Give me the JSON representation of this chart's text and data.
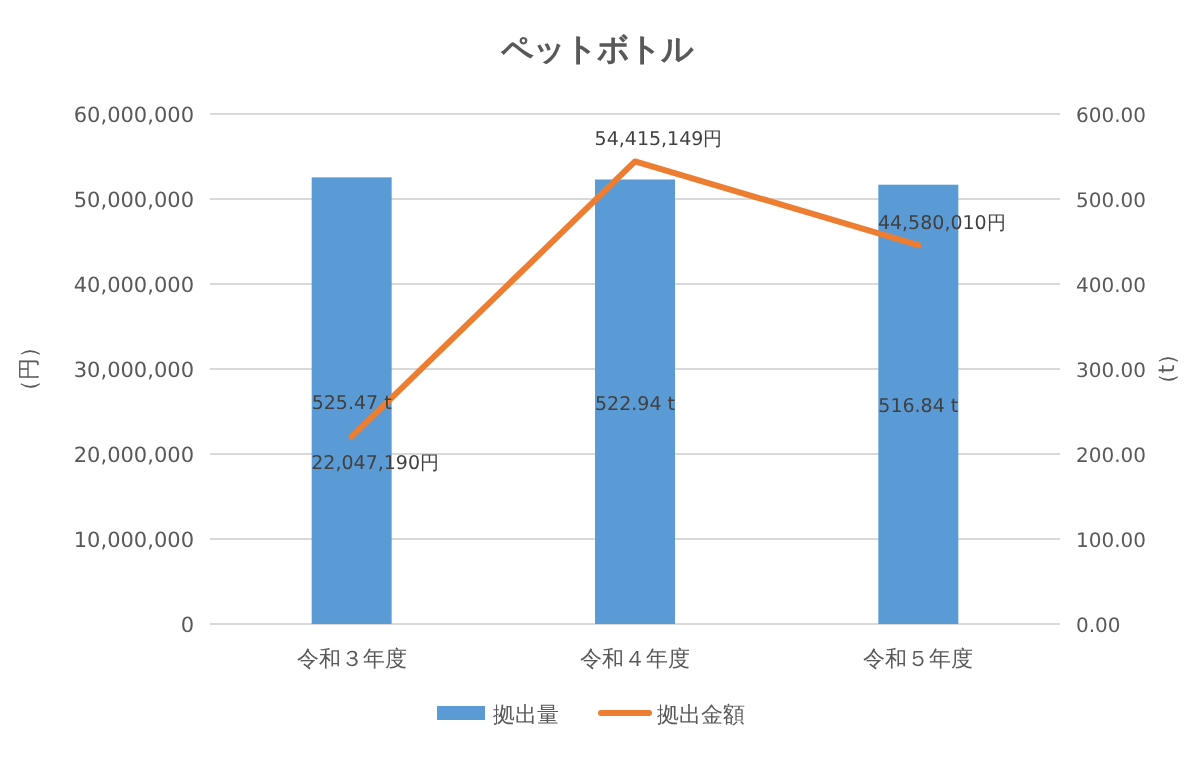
{
  "chart_data": {
    "type": "bar",
    "title": "ペットボトル",
    "ylabel": "（円）",
    "y2label": "（t）",
    "categories": [
      "令和３年度",
      "令和４年度",
      "令和５年度"
    ],
    "series": [
      {
        "name": "拠出量",
        "axis": "y2",
        "color": "#5b9bd5",
        "values": [
          525.47,
          522.94,
          516.84
        ],
        "value_labels": [
          "525.47 t",
          "522.94 t",
          "516.84 t"
        ]
      },
      {
        "name": "拠出金額",
        "type": "line",
        "color": "#ed7d31",
        "values": [
          22047190,
          54415149,
          44580010
        ],
        "value_labels": [
          "22,047,190円",
          "54,415,149円",
          "44,580,010円"
        ]
      }
    ],
    "ylim": [
      0,
      60000000
    ],
    "yticks": [
      {
        "value": 0,
        "label": "0"
      },
      {
        "value": 10000000,
        "label": "10,000,000"
      },
      {
        "value": 20000000,
        "label": "20,000,000"
      },
      {
        "value": 30000000,
        "label": "30,000,000"
      },
      {
        "value": 40000000,
        "label": "40,000,000"
      },
      {
        "value": 50000000,
        "label": "50,000,000"
      },
      {
        "value": 60000000,
        "label": "60,000,000"
      }
    ],
    "y2lim": [
      0,
      600
    ],
    "y2ticks": [
      {
        "value": 0,
        "label": "0.00"
      },
      {
        "value": 100,
        "label": "100.00"
      },
      {
        "value": 200,
        "label": "200.00"
      },
      {
        "value": 300,
        "label": "300.00"
      },
      {
        "value": 400,
        "label": "400.00"
      },
      {
        "value": 500,
        "label": "500.00"
      },
      {
        "value": 600,
        "label": "600.00"
      }
    ],
    "grid": "y",
    "legend": "bottom"
  }
}
